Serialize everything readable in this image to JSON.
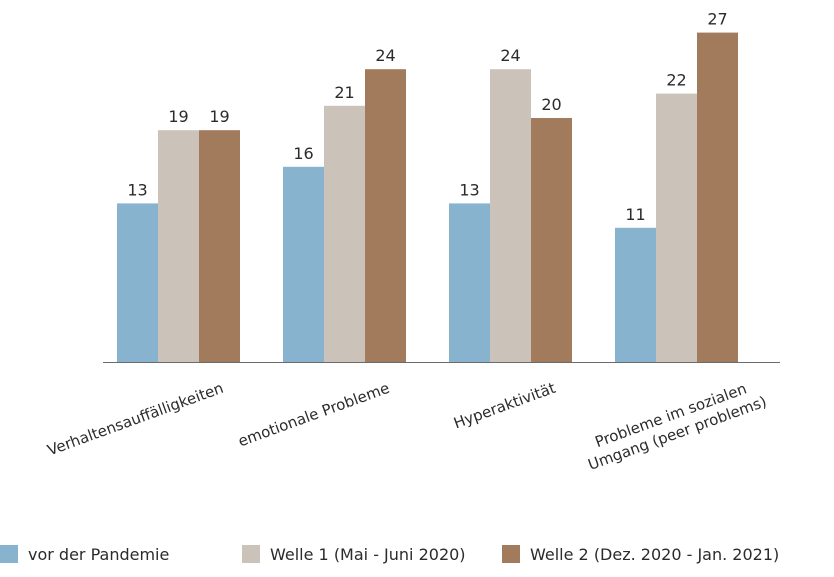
{
  "chart_data": {
    "type": "bar",
    "categories": [
      [
        "Verhaltensauffälligkeiten"
      ],
      [
        "emotionale Probleme"
      ],
      [
        "Hyperaktivität"
      ],
      [
        "Probleme im sozialen",
        "Umgang (peer problems)"
      ]
    ],
    "series": [
      {
        "name": "vor der Pandemie",
        "color": "#87b3ce",
        "values": [
          13,
          16,
          13,
          11
        ]
      },
      {
        "name": "Welle 1 (Mai - Juni 2020)",
        "color": "#cbc3b9",
        "values": [
          19,
          21,
          24,
          22
        ]
      },
      {
        "name": "Welle 2 (Dez. 2020 - Jan. 2021)",
        "color": "#a27a5c",
        "values": [
          19,
          24,
          20,
          27
        ]
      }
    ],
    "ylim": [
      0,
      27
    ],
    "grid": false,
    "legend_position": "bottom",
    "title": "",
    "xlabel": "",
    "ylabel": ""
  }
}
